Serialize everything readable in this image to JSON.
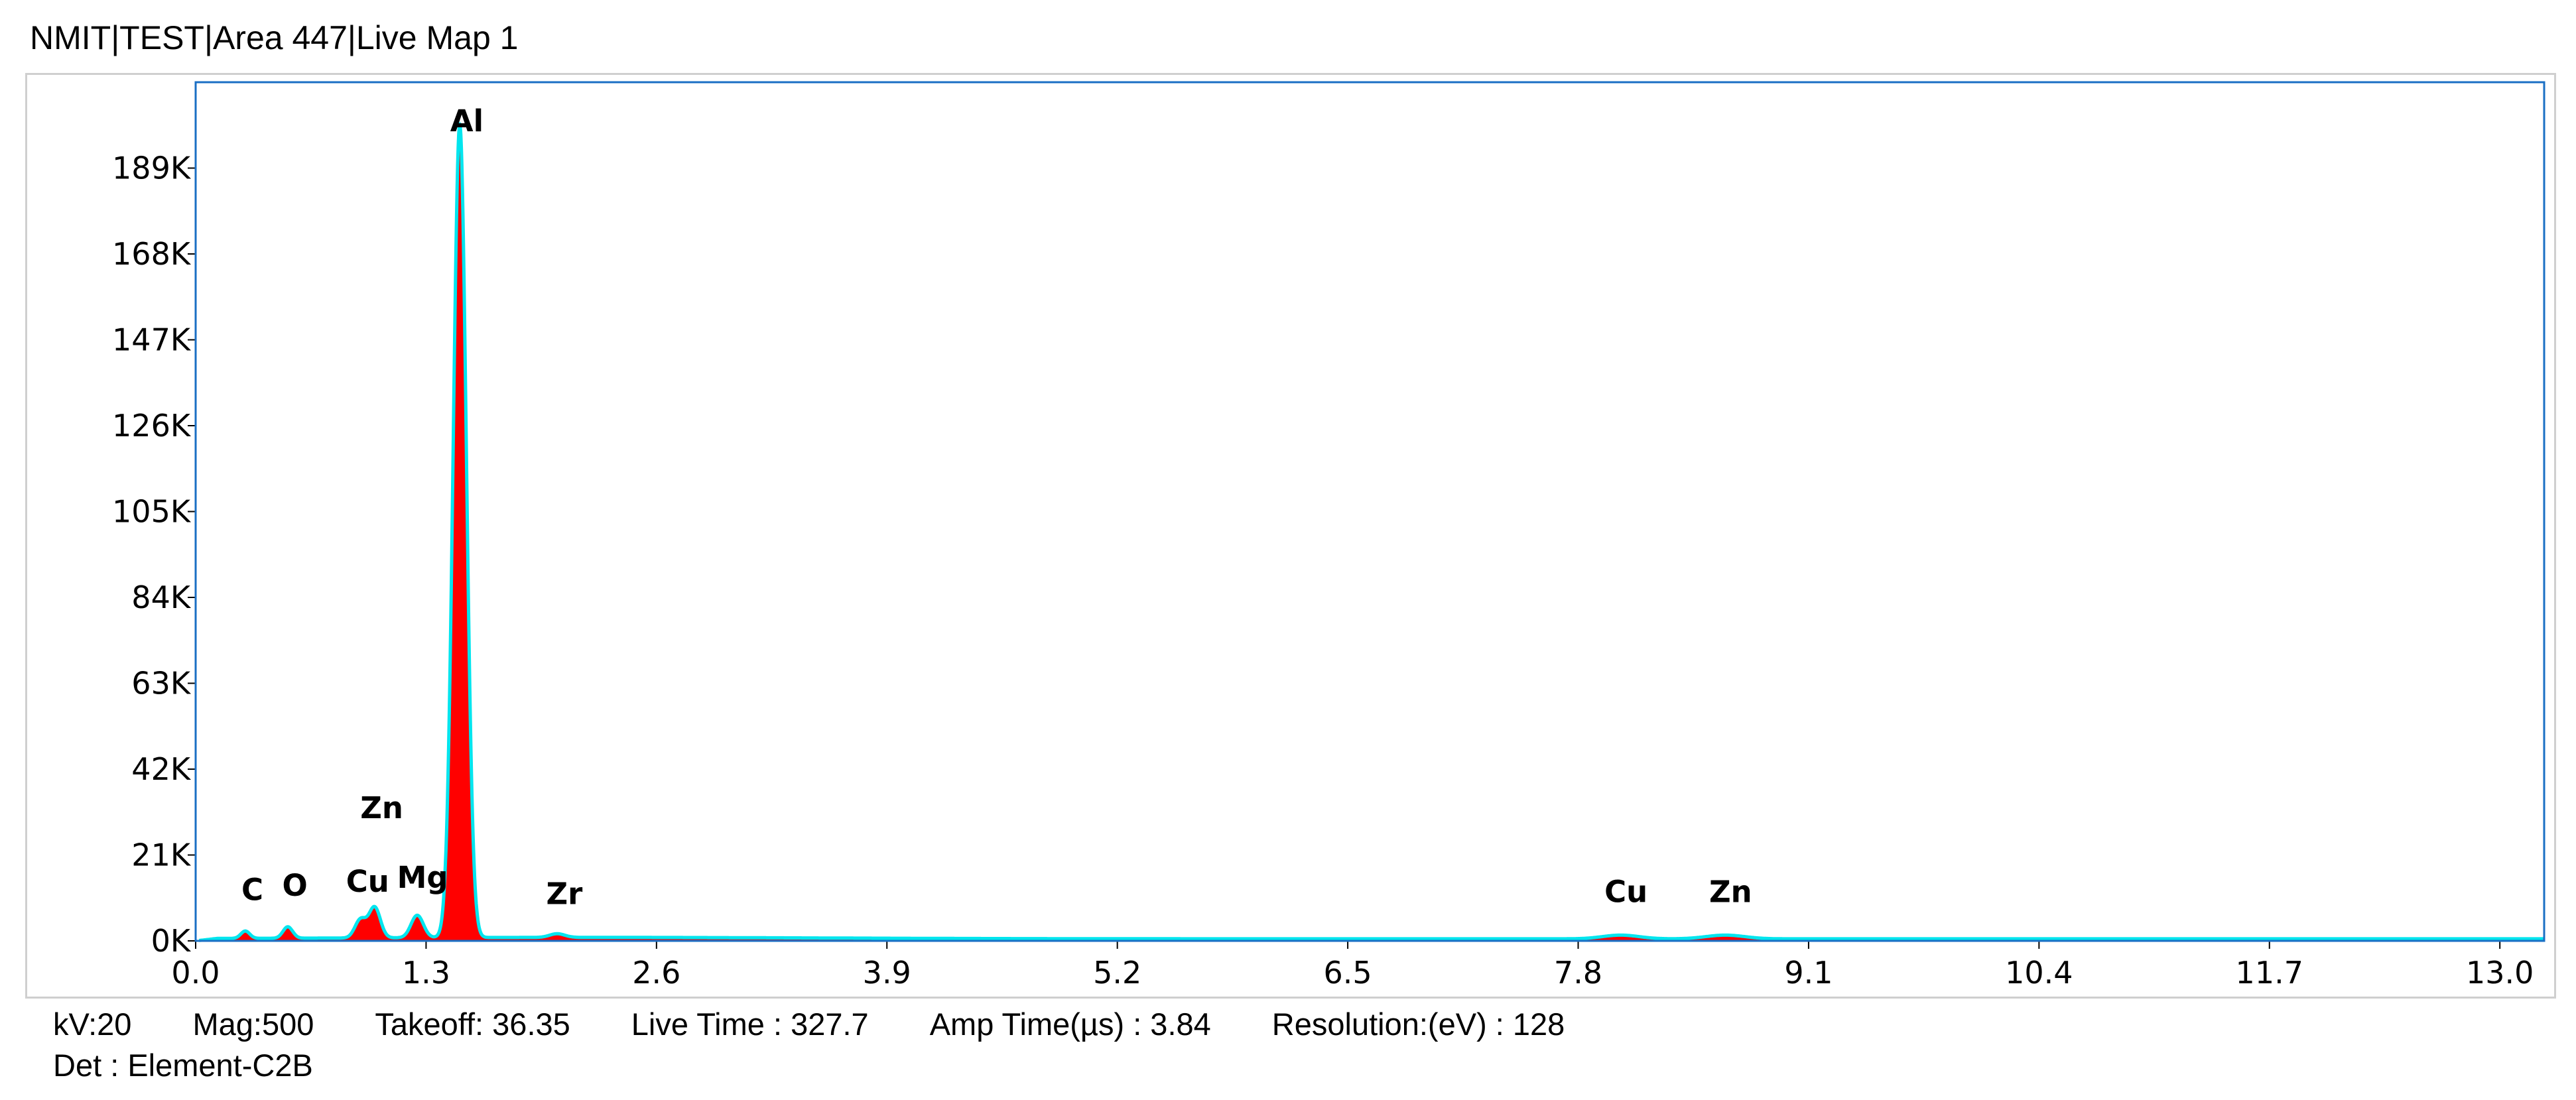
{
  "header": {
    "title": "NMIT|TEST|Area 447|Live Map 1"
  },
  "footer": {
    "kv": "kV:20",
    "mag": "Mag:500",
    "takeoff": "Takeoff: 36.35",
    "live_time": "Live Time : 327.7",
    "amp_time": "Amp Time(µs) : 3.84",
    "resolution": "Resolution:(eV) : 128",
    "detector": "Det : Element-C2B"
  },
  "colors": {
    "spectrum_fill": "#ff0000",
    "spectrum_line": "#00e5ee",
    "axis_box": "#1a6fc4"
  },
  "chart_data": {
    "type": "line",
    "title": "",
    "xlabel": "",
    "ylabel": "",
    "xlim": [
      0.0,
      13.25
    ],
    "ylim": [
      0,
      210
    ],
    "x_ticks": [
      "0.0",
      "1.3",
      "2.6",
      "3.9",
      "5.2",
      "6.5",
      "7.8",
      "9.1",
      "10.4",
      "11.7",
      "13.0"
    ],
    "y_ticks": [
      "0K",
      "21K",
      "42K",
      "63K",
      "84K",
      "105K",
      "126K",
      "147K",
      "168K",
      "189K"
    ],
    "y_units": "K counts",
    "peaks": [
      {
        "label": "C",
        "energy": 0.28,
        "counts": 1.8
      },
      {
        "label": "O",
        "energy": 0.52,
        "counts": 2.8
      },
      {
        "label": "Cu",
        "energy": 0.93,
        "counts": 4.5
      },
      {
        "label": "Zn",
        "energy": 1.01,
        "counts": 7.5
      },
      {
        "label": "Mg",
        "energy": 1.25,
        "counts": 5.5
      },
      {
        "label": "Al",
        "energy": 1.49,
        "counts": 199
      },
      {
        "label": "Zr",
        "energy": 2.04,
        "counts": 0.9
      },
      {
        "label": "Cu",
        "energy": 8.04,
        "counts": 0.9
      },
      {
        "label": "Zn",
        "energy": 8.63,
        "counts": 0.9
      }
    ],
    "peak_labels": [
      {
        "text": "Al",
        "energy": 1.53,
        "counts": 198
      },
      {
        "text": "Zn",
        "energy": 1.05,
        "counts": 30
      },
      {
        "text": "C",
        "energy": 0.32,
        "counts": 10
      },
      {
        "text": "O",
        "energy": 0.56,
        "counts": 11
      },
      {
        "text": "Cu",
        "energy": 0.97,
        "counts": 12
      },
      {
        "text": "Mg",
        "energy": 1.28,
        "counts": 13
      },
      {
        "text": "Zr",
        "energy": 2.08,
        "counts": 9
      },
      {
        "text": "Cu",
        "energy": 8.07,
        "counts": 9.5
      },
      {
        "text": "Zn",
        "energy": 8.66,
        "counts": 9.5
      }
    ]
  }
}
